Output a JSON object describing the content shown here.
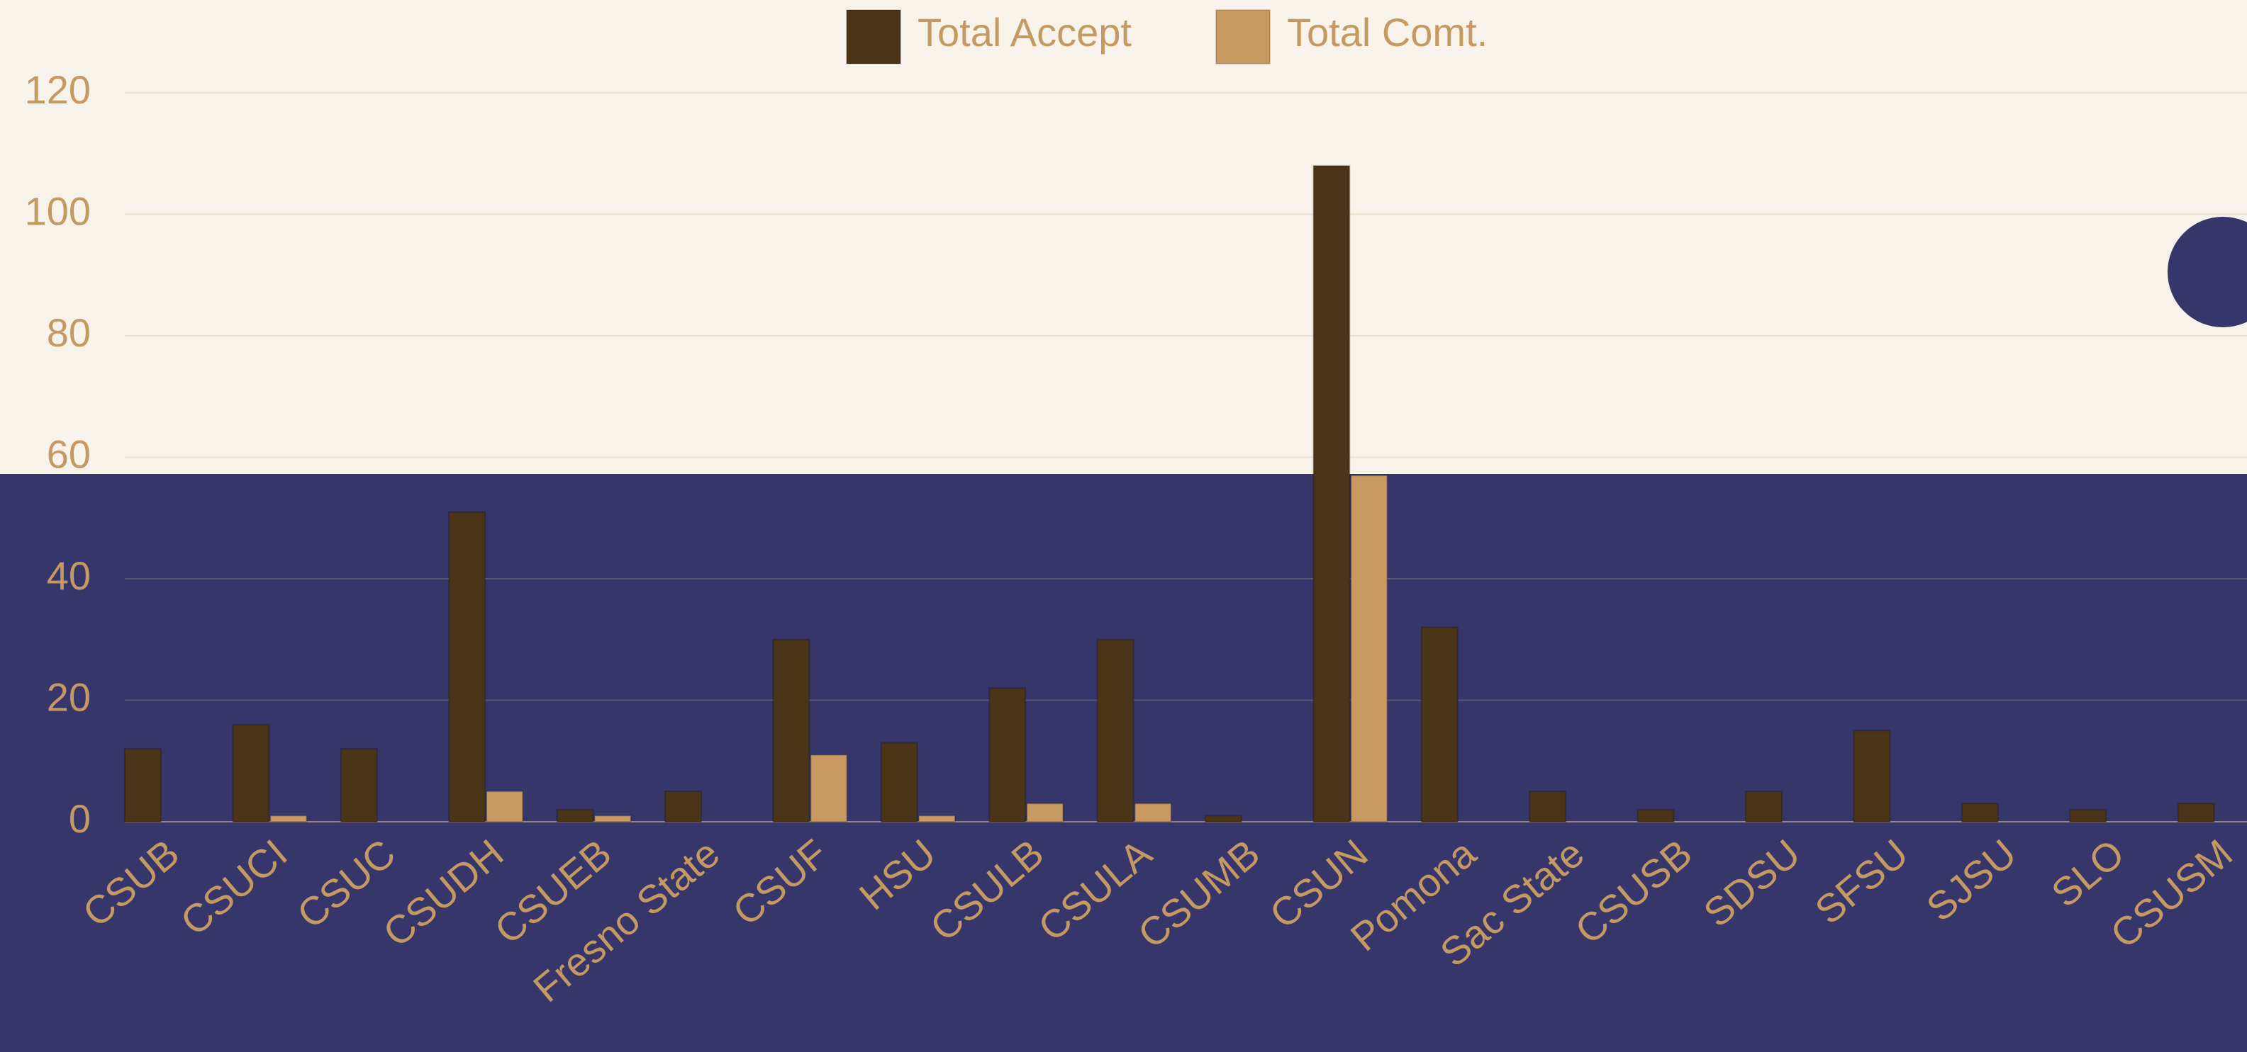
{
  "chart_data": {
    "type": "bar",
    "categories": [
      "CSUB",
      "CSUCI",
      "CSUC",
      "CSUDH",
      "CSUEB",
      "Fresno State",
      "CSUF",
      "HSU",
      "CSULB",
      "CSULA",
      "CSUMB",
      "CSUN",
      "Pomona",
      "Sac State",
      "CSUSB",
      "SDSU",
      "SFSU",
      "SJSU",
      "SLO",
      "CSUSM"
    ],
    "series": [
      {
        "name": "Total Accept",
        "color": "#4a3519",
        "values": [
          12,
          16,
          12,
          51,
          2,
          5,
          30,
          13,
          22,
          30,
          1,
          108,
          32,
          5,
          2,
          5,
          15,
          3,
          2,
          3
        ]
      },
      {
        "name": "Total Comt.",
        "color": "#c89a62",
        "values": [
          0,
          1,
          0,
          5,
          1,
          0,
          11,
          1,
          3,
          3,
          0,
          57,
          0,
          0,
          0,
          0,
          0,
          0,
          0,
          0
        ]
      }
    ],
    "ylim": [
      0,
      120
    ],
    "yticks": [
      0,
      20,
      40,
      60,
      80,
      100,
      120
    ],
    "grid": true,
    "legend": "top"
  }
}
